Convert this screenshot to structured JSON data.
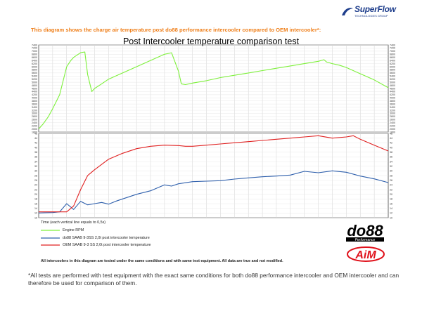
{
  "header": {
    "brand": "SuperFlow",
    "brand_tagline": "TECHNOLOGIES GROUP",
    "intro": "This diagram shows the charge air temperature post do88 performance intercooler compared to OEM intercooler*:"
  },
  "chart_data": [
    {
      "type": "line",
      "title": "Post Intercooler temperature comparison test",
      "xlabel": "Time (each vertical line equals to 0,5s)",
      "x_divisions": 25,
      "ylim": [
        1800,
        7400
      ],
      "y_ticks": [
        1800,
        2000,
        2200,
        2400,
        2600,
        2800,
        3000,
        3200,
        3400,
        3600,
        3800,
        4000,
        4200,
        4400,
        4600,
        4800,
        5000,
        5200,
        5400,
        5600,
        5800,
        6000,
        6200,
        6400,
        6600,
        6800,
        7000,
        7200,
        7400
      ],
      "grid": true,
      "color": "#7df03a",
      "series": [
        {
          "name": "Engine RPM",
          "x": [
            0,
            0.3,
            0.7,
            1.0,
            1.5,
            2.0,
            2.3,
            2.5,
            3.0,
            3.3,
            3.5,
            3.8,
            4.0,
            4.5,
            5.0,
            6.0,
            7.0,
            8.0,
            9.0,
            9.5,
            10.0,
            10.2,
            10.5,
            11.0,
            12.0,
            13.0,
            14.0,
            15.0,
            16.0,
            17.0,
            18.0,
            19.0,
            20.0,
            20.4,
            20.6,
            21.0,
            21.5,
            22.0,
            23.0,
            24.0,
            25.0
          ],
          "y": [
            2000,
            2300,
            2800,
            3300,
            4200,
            6000,
            6400,
            6600,
            6900,
            6950,
            5500,
            4400,
            4600,
            4900,
            5200,
            5600,
            6000,
            6400,
            6800,
            6900,
            5700,
            4900,
            4850,
            4950,
            5100,
            5300,
            5450,
            5600,
            5750,
            5900,
            6050,
            6200,
            6350,
            6450,
            6300,
            6200,
            6100,
            5950,
            5550,
            5150,
            4650
          ]
        }
      ]
    },
    {
      "type": "line",
      "xlabel": "",
      "x_divisions": 25,
      "ylim": [
        10,
        46
      ],
      "y_ticks": [
        10,
        12,
        14,
        16,
        18,
        20,
        22,
        24,
        26,
        28,
        30,
        32,
        34,
        36,
        38,
        40,
        42,
        44,
        46
      ],
      "grid": true,
      "legend": "bottom-left",
      "series": [
        {
          "name": "do88 SAAB 9-3SS 2,0t post intercooler temperature",
          "color": "#2e5fac",
          "x": [
            0,
            1,
            1.5,
            2,
            2.5,
            3,
            3.5,
            4,
            4.5,
            5,
            5.5,
            6,
            7,
            8,
            9,
            9.5,
            10,
            11,
            12,
            13,
            14,
            15,
            16,
            17,
            18,
            19,
            20,
            21,
            22,
            23,
            24,
            25
          ],
          "y": [
            12,
            12.2,
            12.5,
            16,
            13.5,
            17,
            15.5,
            16,
            16.5,
            15.8,
            17,
            18,
            20,
            21.5,
            24,
            23.5,
            24.5,
            25.4,
            25.6,
            25.8,
            26.5,
            27,
            27.5,
            27.8,
            28.2,
            29.8,
            29.2,
            30,
            29.4,
            27.8,
            26.6,
            25
          ]
        },
        {
          "name": "OEM SAAB 9-3 SS 2,0t post intercooler temperature",
          "color": "#e02020",
          "x": [
            0,
            1,
            1.5,
            2,
            2.5,
            3,
            3.5,
            4,
            5,
            6,
            7,
            8,
            9,
            10,
            10.5,
            11,
            12,
            13,
            14,
            15,
            16,
            17,
            18,
            19,
            20,
            21,
            22,
            22.5,
            23,
            24,
            25
          ],
          "y": [
            12.5,
            12.5,
            12.5,
            12.5,
            15,
            22,
            28,
            30.5,
            35,
            37.5,
            39.5,
            40.5,
            41,
            40.8,
            40.5,
            40.5,
            41,
            41.5,
            42,
            42.5,
            43,
            43.5,
            44,
            44.5,
            45,
            44,
            44.5,
            45,
            43.5,
            41,
            38.5
          ]
        }
      ]
    }
  ],
  "logos": {
    "do88": "do88",
    "do88_sub": "Performance",
    "aim": "AiM"
  },
  "footnotes": {
    "small": "All intercoolers in this diagram are tested under the same conditions and with same test equipment. All data are true and not modified.",
    "main": "*All tests are performed with test equipment with the exact same conditions for both do88 performance intercooler and OEM intercooler and can therefore be used for comparison of them."
  }
}
